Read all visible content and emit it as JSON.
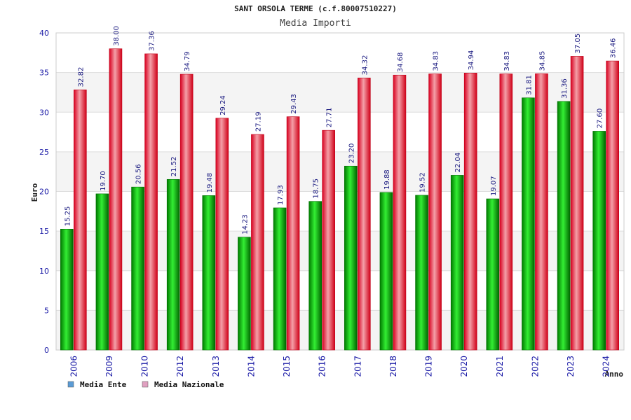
{
  "chart_data": {
    "type": "bar",
    "title": "SANT ORSOLA TERME (c.f.80007510227)",
    "subtitle": "Media Importi",
    "xlabel": "Anno",
    "ylabel": "Euro",
    "ylim": [
      0,
      40
    ],
    "yticks": [
      0,
      5,
      10,
      15,
      20,
      25,
      30,
      35,
      40
    ],
    "categories": [
      "2006",
      "2009",
      "2010",
      "2012",
      "2013",
      "2014",
      "2015",
      "2016",
      "2017",
      "2018",
      "2019",
      "2020",
      "2021",
      "2022",
      "2023",
      "2024"
    ],
    "series": [
      {
        "name": "Media Ente",
        "legend_color": "#5b9bd5",
        "bar_color": "#00a000",
        "values": [
          15.25,
          19.7,
          20.56,
          21.52,
          19.48,
          14.23,
          17.93,
          18.75,
          23.2,
          19.88,
          19.52,
          22.04,
          19.07,
          31.81,
          31.36,
          27.6
        ],
        "labels": [
          "15.25",
          "19.70",
          "20.56",
          "21.52",
          "19.48",
          "14.23",
          "17.93",
          "18.75",
          "23.20",
          "19.88",
          "19.52",
          "22.04",
          "19.07",
          "31.81",
          "31.36",
          "27.60"
        ]
      },
      {
        "name": "Media Nazionale",
        "legend_color": "#e0a0c0",
        "bar_color": "#e00020",
        "values": [
          32.82,
          38.0,
          37.36,
          34.79,
          29.24,
          27.19,
          29.43,
          27.71,
          34.32,
          34.68,
          34.83,
          34.94,
          34.83,
          34.85,
          37.05,
          36.46
        ],
        "labels": [
          "32.82",
          "38.00",
          "37.36",
          "34.79",
          "29.24",
          "27.19",
          "29.43",
          "27.71",
          "34.32",
          "34.68",
          "34.83",
          "34.94",
          "34.83",
          "34.85",
          "37.05",
          "36.46"
        ]
      }
    ],
    "grid": true,
    "legend_position": "bottom-left"
  }
}
